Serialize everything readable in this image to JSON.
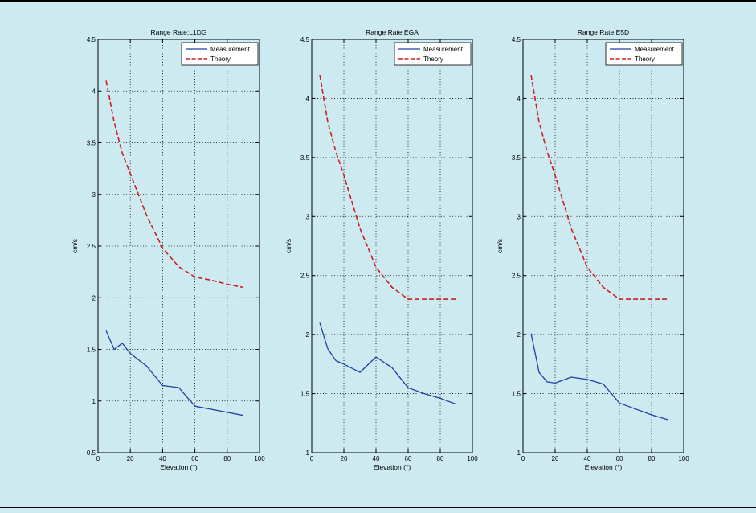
{
  "chart_data": [
    {
      "type": "line",
      "title": "Range Rate:L1DG",
      "xlabel": "Elevation (°)",
      "ylabel": "cm/s",
      "xlim": [
        0,
        100
      ],
      "ylim": [
        0.5,
        4.5
      ],
      "xticks": [
        0,
        20,
        40,
        60,
        80,
        100
      ],
      "yticks": [
        0.5,
        1,
        1.5,
        2,
        2.5,
        3,
        3.5,
        4,
        4.5
      ],
      "grid": true,
      "legend_position": "top-right",
      "series": [
        {
          "name": "Measurement",
          "style": "solid",
          "color": "#1f3fa8",
          "x": [
            5,
            10,
            15,
            20,
            30,
            40,
            50,
            60,
            70,
            80,
            90
          ],
          "y": [
            1.68,
            1.5,
            1.56,
            1.46,
            1.34,
            1.15,
            1.13,
            0.95,
            0.92,
            0.89,
            0.86
          ]
        },
        {
          "name": "Theory",
          "style": "dashed",
          "color": "#cc1f1f",
          "x": [
            5,
            10,
            15,
            20,
            30,
            40,
            50,
            60,
            70,
            80,
            90
          ],
          "y": [
            4.1,
            3.7,
            3.4,
            3.2,
            2.8,
            2.48,
            2.3,
            2.2,
            2.17,
            2.13,
            2.1
          ]
        }
      ]
    },
    {
      "type": "line",
      "title": "Range Rate:EGA",
      "xlabel": "Elevation (°)",
      "ylabel": "cm/s",
      "xlim": [
        0,
        100
      ],
      "ylim": [
        1,
        4.5
      ],
      "xticks": [
        0,
        20,
        40,
        60,
        80,
        100
      ],
      "yticks": [
        1,
        1.5,
        2,
        2.5,
        3,
        3.5,
        4,
        4.5
      ],
      "grid": true,
      "legend_position": "top-right",
      "series": [
        {
          "name": "Measurement",
          "style": "solid",
          "color": "#1f3fa8",
          "x": [
            5,
            10,
            15,
            20,
            30,
            40,
            50,
            60,
            70,
            80,
            90
          ],
          "y": [
            2.1,
            1.88,
            1.78,
            1.75,
            1.68,
            1.81,
            1.72,
            1.55,
            1.5,
            1.46,
            1.41
          ]
        },
        {
          "name": "Theory",
          "style": "dashed",
          "color": "#cc1f1f",
          "x": [
            5,
            10,
            15,
            20,
            30,
            40,
            50,
            60,
            70,
            80,
            90
          ],
          "y": [
            4.2,
            3.8,
            3.55,
            3.35,
            2.9,
            2.57,
            2.4,
            2.3,
            2.3,
            2.3,
            2.3
          ]
        }
      ]
    },
    {
      "type": "line",
      "title": "Range Rate:E5D",
      "xlabel": "Elevation (°)",
      "ylabel": "cm/s",
      "xlim": [
        0,
        100
      ],
      "ylim": [
        1,
        4.5
      ],
      "xticks": [
        0,
        20,
        40,
        60,
        80,
        100
      ],
      "yticks": [
        1,
        1.5,
        2,
        2.5,
        3,
        3.5,
        4,
        4.5
      ],
      "grid": true,
      "legend_position": "top-right",
      "series": [
        {
          "name": "Measurement",
          "style": "solid",
          "color": "#1f3fa8",
          "x": [
            5,
            7,
            10,
            15,
            20,
            30,
            40,
            50,
            60,
            70,
            80,
            90
          ],
          "y": [
            2.01,
            1.88,
            1.68,
            1.6,
            1.59,
            1.64,
            1.62,
            1.58,
            1.42,
            1.37,
            1.32,
            1.28
          ]
        },
        {
          "name": "Theory",
          "style": "dashed",
          "color": "#cc1f1f",
          "x": [
            5,
            10,
            15,
            20,
            30,
            40,
            50,
            60,
            70,
            80,
            90
          ],
          "y": [
            4.2,
            3.8,
            3.55,
            3.35,
            2.9,
            2.57,
            2.4,
            2.3,
            2.3,
            2.3,
            2.3
          ]
        }
      ]
    }
  ]
}
